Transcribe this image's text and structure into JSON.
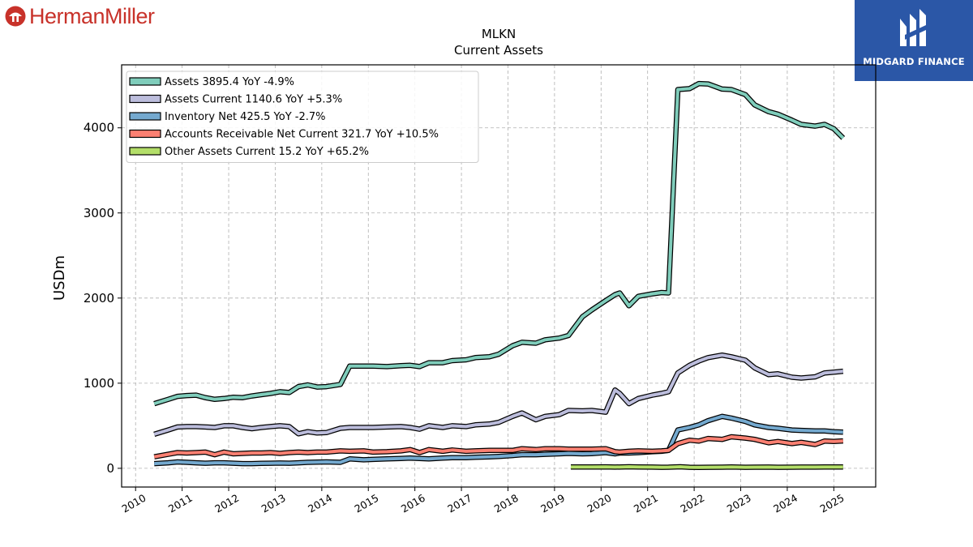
{
  "brand": {
    "name": "HermanMiller",
    "color": "#c8322a",
    "icon": "herman-miller-logo-icon"
  },
  "partner": {
    "name": "MIDGARD FINANCE",
    "color": "#2b57a7",
    "icon": "midgard-logo-icon"
  },
  "chart_data": {
    "type": "line",
    "title": "MLKN",
    "subtitle": "Current  Assets",
    "ylabel": "USDm",
    "xlabel": "",
    "xlim": [
      2009.7,
      2025.9
    ],
    "ylim": [
      -220,
      4740
    ],
    "yticks": [
      0,
      1000,
      2000,
      3000,
      4000
    ],
    "ytick_labels": [
      "0",
      "1000",
      "2000",
      "3000",
      "4000"
    ],
    "xticks": [
      2010,
      2011,
      2012,
      2013,
      2014,
      2015,
      2016,
      2017,
      2018,
      2019,
      2020,
      2021,
      2022,
      2023,
      2024,
      2025
    ],
    "xtick_labels": [
      "2010",
      "2011",
      "2012",
      "2013",
      "2014",
      "2015",
      "2016",
      "2017",
      "2018",
      "2019",
      "2020",
      "2021",
      "2022",
      "2023",
      "2024",
      "2025"
    ],
    "grid": true,
    "legend_position": "top-left",
    "series": [
      {
        "name": "Assets  3895.4 YoY -4.9%",
        "color": "#7fcdbb",
        "points": [
          [
            2010.4,
            760
          ],
          [
            2010.7,
            810
          ],
          [
            2010.9,
            845
          ],
          [
            2011.1,
            855
          ],
          [
            2011.3,
            860
          ],
          [
            2011.5,
            830
          ],
          [
            2011.7,
            810
          ],
          [
            2011.9,
            820
          ],
          [
            2012.1,
            835
          ],
          [
            2012.3,
            830
          ],
          [
            2012.5,
            850
          ],
          [
            2012.7,
            865
          ],
          [
            2012.9,
            880
          ],
          [
            2013.1,
            900
          ],
          [
            2013.3,
            890
          ],
          [
            2013.5,
            960
          ],
          [
            2013.7,
            980
          ],
          [
            2013.9,
            955
          ],
          [
            2014.1,
            960
          ],
          [
            2014.4,
            985
          ],
          [
            2014.6,
            1200
          ],
          [
            2014.9,
            1200
          ],
          [
            2015.1,
            1200
          ],
          [
            2015.4,
            1195
          ],
          [
            2015.7,
            1205
          ],
          [
            2015.9,
            1210
          ],
          [
            2016.1,
            1195
          ],
          [
            2016.3,
            1240
          ],
          [
            2016.6,
            1240
          ],
          [
            2016.8,
            1265
          ],
          [
            2017.1,
            1275
          ],
          [
            2017.3,
            1300
          ],
          [
            2017.6,
            1310
          ],
          [
            2017.8,
            1340
          ],
          [
            2018.1,
            1440
          ],
          [
            2018.3,
            1480
          ],
          [
            2018.6,
            1470
          ],
          [
            2018.8,
            1510
          ],
          [
            2019.1,
            1530
          ],
          [
            2019.3,
            1560
          ],
          [
            2019.6,
            1780
          ],
          [
            2019.8,
            1860
          ],
          [
            2020.1,
            1970
          ],
          [
            2020.3,
            2040
          ],
          [
            2020.4,
            2060
          ],
          [
            2020.6,
            1910
          ],
          [
            2020.8,
            2020
          ],
          [
            2021.1,
            2050
          ],
          [
            2021.3,
            2065
          ],
          [
            2021.45,
            2060
          ],
          [
            2021.65,
            4450
          ],
          [
            2021.9,
            4460
          ],
          [
            2022.1,
            4520
          ],
          [
            2022.3,
            4515
          ],
          [
            2022.6,
            4455
          ],
          [
            2022.8,
            4450
          ],
          [
            2023.1,
            4390
          ],
          [
            2023.3,
            4270
          ],
          [
            2023.6,
            4190
          ],
          [
            2023.8,
            4160
          ],
          [
            2024.1,
            4090
          ],
          [
            2024.3,
            4040
          ],
          [
            2024.6,
            4020
          ],
          [
            2024.8,
            4040
          ],
          [
            2025.0,
            3990
          ],
          [
            2025.2,
            3880
          ]
        ]
      },
      {
        "name": "Assets Current  1140.6 YoY +5.3%",
        "color": "#bcbddc",
        "points": [
          [
            2010.4,
            400
          ],
          [
            2010.7,
            450
          ],
          [
            2010.9,
            485
          ],
          [
            2011.1,
            490
          ],
          [
            2011.3,
            490
          ],
          [
            2011.5,
            485
          ],
          [
            2011.7,
            480
          ],
          [
            2011.9,
            500
          ],
          [
            2012.1,
            500
          ],
          [
            2012.3,
            480
          ],
          [
            2012.5,
            465
          ],
          [
            2012.7,
            480
          ],
          [
            2012.9,
            490
          ],
          [
            2013.1,
            500
          ],
          [
            2013.3,
            490
          ],
          [
            2013.5,
            405
          ],
          [
            2013.7,
            430
          ],
          [
            2013.9,
            415
          ],
          [
            2014.1,
            420
          ],
          [
            2014.4,
            470
          ],
          [
            2014.6,
            480
          ],
          [
            2014.9,
            480
          ],
          [
            2015.1,
            480
          ],
          [
            2015.4,
            485
          ],
          [
            2015.7,
            490
          ],
          [
            2015.9,
            480
          ],
          [
            2016.1,
            460
          ],
          [
            2016.3,
            500
          ],
          [
            2016.6,
            480
          ],
          [
            2016.8,
            500
          ],
          [
            2017.1,
            490
          ],
          [
            2017.3,
            510
          ],
          [
            2017.6,
            520
          ],
          [
            2017.8,
            540
          ],
          [
            2018.1,
            610
          ],
          [
            2018.3,
            650
          ],
          [
            2018.6,
            570
          ],
          [
            2018.8,
            610
          ],
          [
            2019.1,
            630
          ],
          [
            2019.3,
            680
          ],
          [
            2019.6,
            675
          ],
          [
            2019.8,
            680
          ],
          [
            2020.1,
            660
          ],
          [
            2020.3,
            920
          ],
          [
            2020.4,
            880
          ],
          [
            2020.6,
            760
          ],
          [
            2020.8,
            820
          ],
          [
            2021.1,
            860
          ],
          [
            2021.3,
            880
          ],
          [
            2021.45,
            900
          ],
          [
            2021.65,
            1120
          ],
          [
            2021.9,
            1210
          ],
          [
            2022.1,
            1260
          ],
          [
            2022.3,
            1300
          ],
          [
            2022.6,
            1330
          ],
          [
            2022.8,
            1310
          ],
          [
            2023.1,
            1270
          ],
          [
            2023.3,
            1180
          ],
          [
            2023.6,
            1100
          ],
          [
            2023.8,
            1110
          ],
          [
            2024.1,
            1070
          ],
          [
            2024.3,
            1060
          ],
          [
            2024.6,
            1075
          ],
          [
            2024.8,
            1120
          ],
          [
            2025.0,
            1130
          ],
          [
            2025.2,
            1140
          ]
        ]
      },
      {
        "name": "Inventory Net  425.5 YoY -2.7%",
        "color": "#74a9cf",
        "points": [
          [
            2010.4,
            55
          ],
          [
            2010.7,
            65
          ],
          [
            2010.9,
            75
          ],
          [
            2011.1,
            70
          ],
          [
            2011.3,
            65
          ],
          [
            2011.5,
            60
          ],
          [
            2011.7,
            65
          ],
          [
            2011.9,
            65
          ],
          [
            2012.1,
            60
          ],
          [
            2012.3,
            55
          ],
          [
            2012.5,
            55
          ],
          [
            2012.7,
            58
          ],
          [
            2012.9,
            60
          ],
          [
            2013.1,
            62
          ],
          [
            2013.3,
            60
          ],
          [
            2013.5,
            65
          ],
          [
            2013.7,
            70
          ],
          [
            2013.9,
            72
          ],
          [
            2014.1,
            75
          ],
          [
            2014.4,
            70
          ],
          [
            2014.6,
            110
          ],
          [
            2014.9,
            100
          ],
          [
            2015.1,
            105
          ],
          [
            2015.4,
            110
          ],
          [
            2015.7,
            115
          ],
          [
            2015.9,
            120
          ],
          [
            2016.1,
            115
          ],
          [
            2016.3,
            110
          ],
          [
            2016.6,
            120
          ],
          [
            2016.8,
            125
          ],
          [
            2017.1,
            125
          ],
          [
            2017.3,
            130
          ],
          [
            2017.6,
            135
          ],
          [
            2017.8,
            140
          ],
          [
            2018.1,
            150
          ],
          [
            2018.3,
            160
          ],
          [
            2018.6,
            160
          ],
          [
            2018.8,
            165
          ],
          [
            2019.1,
            170
          ],
          [
            2019.3,
            175
          ],
          [
            2019.6,
            170
          ],
          [
            2019.8,
            172
          ],
          [
            2020.1,
            185
          ],
          [
            2020.3,
            170
          ],
          [
            2020.4,
            180
          ],
          [
            2020.6,
            180
          ],
          [
            2020.8,
            185
          ],
          [
            2021.1,
            195
          ],
          [
            2021.3,
            200
          ],
          [
            2021.45,
            210
          ],
          [
            2021.65,
            450
          ],
          [
            2021.9,
            480
          ],
          [
            2022.1,
            510
          ],
          [
            2022.3,
            560
          ],
          [
            2022.6,
            610
          ],
          [
            2022.8,
            590
          ],
          [
            2023.1,
            550
          ],
          [
            2023.3,
            510
          ],
          [
            2023.6,
            480
          ],
          [
            2023.8,
            470
          ],
          [
            2024.1,
            450
          ],
          [
            2024.3,
            445
          ],
          [
            2024.6,
            440
          ],
          [
            2024.8,
            440
          ],
          [
            2025.0,
            430
          ],
          [
            2025.2,
            425
          ]
        ]
      },
      {
        "name": "Accounts Receivable Net Current  321.7 YoY +10.5%",
        "color": "#fb8072",
        "points": [
          [
            2010.4,
            135
          ],
          [
            2010.7,
            165
          ],
          [
            2010.9,
            185
          ],
          [
            2011.1,
            180
          ],
          [
            2011.3,
            185
          ],
          [
            2011.5,
            190
          ],
          [
            2011.7,
            160
          ],
          [
            2011.9,
            190
          ],
          [
            2012.1,
            170
          ],
          [
            2012.3,
            175
          ],
          [
            2012.5,
            180
          ],
          [
            2012.7,
            180
          ],
          [
            2012.9,
            185
          ],
          [
            2013.1,
            175
          ],
          [
            2013.3,
            185
          ],
          [
            2013.5,
            190
          ],
          [
            2013.7,
            185
          ],
          [
            2013.9,
            190
          ],
          [
            2014.1,
            190
          ],
          [
            2014.4,
            205
          ],
          [
            2014.6,
            200
          ],
          [
            2014.9,
            205
          ],
          [
            2015.1,
            190
          ],
          [
            2015.4,
            195
          ],
          [
            2015.7,
            205
          ],
          [
            2015.9,
            220
          ],
          [
            2016.1,
            185
          ],
          [
            2016.3,
            220
          ],
          [
            2016.6,
            200
          ],
          [
            2016.8,
            215
          ],
          [
            2017.1,
            200
          ],
          [
            2017.3,
            205
          ],
          [
            2017.6,
            210
          ],
          [
            2017.8,
            210
          ],
          [
            2018.1,
            210
          ],
          [
            2018.3,
            230
          ],
          [
            2018.6,
            220
          ],
          [
            2018.8,
            230
          ],
          [
            2019.1,
            230
          ],
          [
            2019.3,
            225
          ],
          [
            2019.6,
            225
          ],
          [
            2019.8,
            225
          ],
          [
            2020.1,
            230
          ],
          [
            2020.3,
            195
          ],
          [
            2020.4,
            190
          ],
          [
            2020.6,
            200
          ],
          [
            2020.8,
            205
          ],
          [
            2021.1,
            200
          ],
          [
            2021.3,
            205
          ],
          [
            2021.45,
            210
          ],
          [
            2021.65,
            290
          ],
          [
            2021.9,
            330
          ],
          [
            2022.1,
            320
          ],
          [
            2022.3,
            350
          ],
          [
            2022.6,
            340
          ],
          [
            2022.8,
            370
          ],
          [
            2023.1,
            355
          ],
          [
            2023.3,
            340
          ],
          [
            2023.6,
            300
          ],
          [
            2023.8,
            315
          ],
          [
            2024.1,
            290
          ],
          [
            2024.3,
            305
          ],
          [
            2024.6,
            280
          ],
          [
            2024.8,
            320
          ],
          [
            2025.0,
            315
          ],
          [
            2025.2,
            322
          ]
        ]
      },
      {
        "name": "Other Assets Current  15.2 YoY +65.2%",
        "color": "#b3de69",
        "points": [
          [
            2019.35,
            15
          ],
          [
            2019.6,
            15
          ],
          [
            2019.8,
            16
          ],
          [
            2020.1,
            17
          ],
          [
            2020.3,
            14
          ],
          [
            2020.6,
            18
          ],
          [
            2020.8,
            16
          ],
          [
            2021.1,
            14
          ],
          [
            2021.3,
            12
          ],
          [
            2021.45,
            13
          ],
          [
            2021.7,
            18
          ],
          [
            2021.9,
            12
          ],
          [
            2022.1,
            11
          ],
          [
            2022.3,
            12
          ],
          [
            2022.6,
            13
          ],
          [
            2022.8,
            15
          ],
          [
            2023.1,
            12
          ],
          [
            2023.3,
            13
          ],
          [
            2023.6,
            14
          ],
          [
            2023.8,
            12
          ],
          [
            2024.1,
            13
          ],
          [
            2024.3,
            14
          ],
          [
            2024.6,
            14
          ],
          [
            2024.8,
            16
          ],
          [
            2025.0,
            15
          ],
          [
            2025.2,
            15
          ]
        ]
      }
    ]
  }
}
